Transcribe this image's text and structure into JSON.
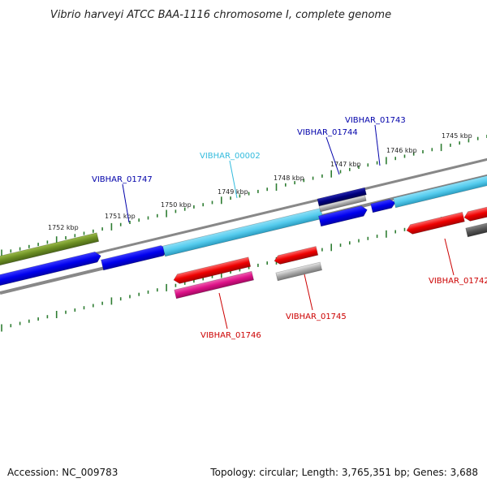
{
  "title": "Vibrio harveyi ATCC BAA-1116 chromosome I, complete genome",
  "footer": {
    "accession": "Accession: NC_009783",
    "summary": "Topology: circular; Length: 3,765,351 bp; Genes: 3,688"
  },
  "ruler_labels": [
    "1752 kbp",
    "1751 kbp",
    "1750 kbp",
    "1749 kbp",
    "1748 kbp",
    "1747 kbp",
    "1746 kbp",
    "1745 kbp"
  ],
  "gene_labels": [
    {
      "text": "VIBHAR_01747",
      "color": "#0000aa"
    },
    {
      "text": "VIBHAR_00002",
      "color": "#33bbdd"
    },
    {
      "text": "VIBHAR_01744",
      "color": "#0000aa"
    },
    {
      "text": "VIBHAR_01743",
      "color": "#0000aa"
    },
    {
      "text": "VIBHAR_01746",
      "color": "#cc0000"
    },
    {
      "text": "VIBHAR_01745",
      "color": "#cc0000"
    },
    {
      "text": "VIBHAR_01742",
      "color": "#cc0000"
    }
  ],
  "colors": {
    "olive_gene": "#6b8e23",
    "blue_gene": "#0000ee",
    "cyan_gene": "#55ccee",
    "navy_gene": "#000080",
    "red_gene": "#ee0000",
    "magenta_gene": "#dd1188",
    "grey_gene": "#aaaaaa",
    "tick": "#2e7d32",
    "backbone": "#888888"
  }
}
